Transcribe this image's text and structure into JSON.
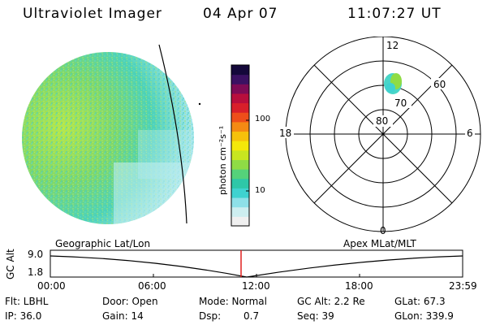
{
  "header": {
    "title": "Ultraviolet Imager",
    "date": "04 Apr 07",
    "time": "11:07:27 UT"
  },
  "colorbar": {
    "unit_label": "photon cm⁻²s⁻¹",
    "tick_100": "100",
    "tick_10": "10",
    "colors": [
      "#f0f0f0",
      "#cdeef0",
      "#8ee0e8",
      "#3fd2d0",
      "#2ec7a8",
      "#55d27a",
      "#8fdc45",
      "#c8e620",
      "#f4e80a",
      "#f6c10b",
      "#f48a13",
      "#ee4e1a",
      "#d81f2a",
      "#b80e3c",
      "#7e0b55",
      "#3b1162",
      "#14083a"
    ]
  },
  "polar": {
    "label_top": "12",
    "label_bottom": "0",
    "label_left": "18",
    "label_right": "6",
    "ring_80": "80",
    "ring_70": "70",
    "ring_60": "60"
  },
  "timeline": {
    "left_caption": "Geographic Lat/Lon",
    "right_caption": "Apex MLat/MLT",
    "axis_title": "GC Alt",
    "ytick_top": "9.0",
    "ytick_bottom": "1.8",
    "xticks": [
      "00:00",
      "06:00",
      "12:00",
      "18:00",
      "23:59"
    ]
  },
  "info": {
    "filter": "Flt: LBHL",
    "ip": "IP: 36.0",
    "door": "Door: Open",
    "gain": "Gain: 14",
    "mode": "Mode: Normal",
    "dsp_label": "Dsp:",
    "dsp_value": "0.7",
    "gcalt": "GC Alt: 2.2 Re",
    "seq": "Seq: 39",
    "glat": "GLat: 67.3",
    "glon": "GLon: 339.9"
  }
}
